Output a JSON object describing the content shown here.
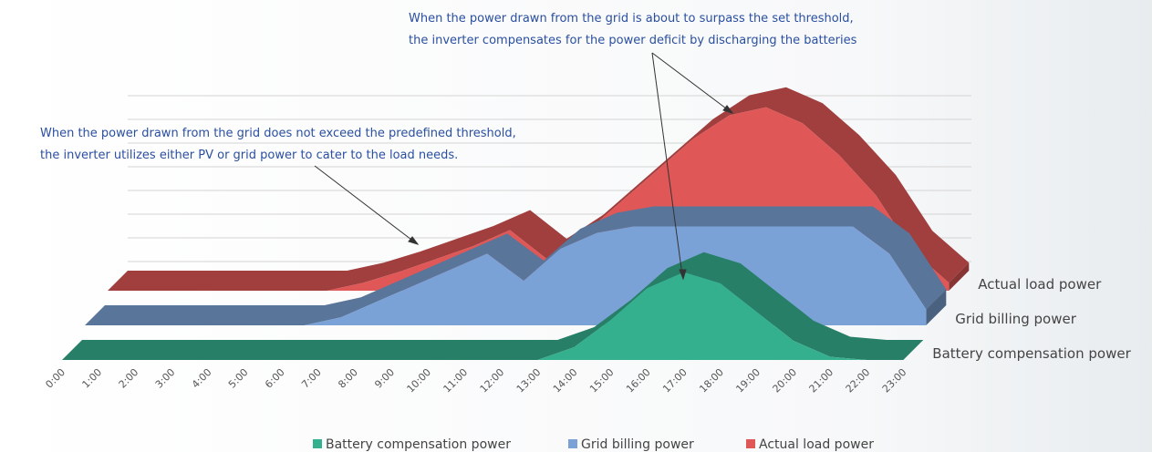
{
  "chart_data": {
    "type": "area3d",
    "annotations": [
      "When the power drawn from the grid is about to surpass the set threshold,",
      "the inverter compensates for the power deficit by discharging the batteries",
      "When the power drawn from the grid does not exceed the predefined threshold,",
      "the inverter utilizes either PV or grid power to cater to the load needs."
    ],
    "categories": [
      "0:00",
      "1:00",
      "2:00",
      "3:00",
      "4:00",
      "5:00",
      "6:00",
      "7:00",
      "8:00",
      "9:00",
      "10:00",
      "11:00",
      "12:00",
      "13:00",
      "14:00",
      "15:00",
      "16:00",
      "17:00",
      "18:00",
      "19:00",
      "20:00",
      "21:00",
      "22:00",
      "23:00"
    ],
    "series": [
      {
        "name": "Battery compensation power",
        "color": "#35b08e",
        "values": [
          0,
          0,
          0,
          0,
          0,
          0,
          0,
          0,
          0,
          0,
          0,
          0,
          0,
          0,
          8,
          25,
          45,
          55,
          48,
          30,
          12,
          2,
          0,
          0
        ]
      },
      {
        "name": "Grid billing power",
        "color": "#7ba2d6",
        "values": [
          0,
          0,
          0,
          0,
          0,
          0,
          0,
          5,
          15,
          25,
          35,
          45,
          28,
          48,
          58,
          62,
          62,
          62,
          62,
          62,
          62,
          62,
          45,
          10
        ]
      },
      {
        "name": "Actual load power",
        "color": "#e05757",
        "values": [
          0,
          0,
          0,
          0,
          0,
          0,
          0,
          5,
          12,
          20,
          28,
          38,
          20,
          35,
          55,
          75,
          95,
          110,
          115,
          105,
          85,
          60,
          25,
          5
        ]
      }
    ],
    "ylim": [
      0,
      120
    ],
    "legend": "bottom"
  }
}
